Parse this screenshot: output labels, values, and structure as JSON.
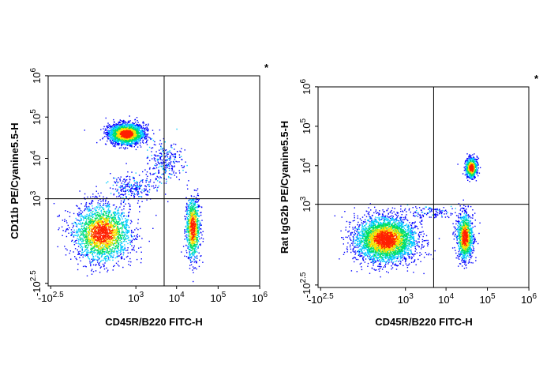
{
  "chart_data": [
    {
      "type": "scatter",
      "subtype": "flow-cytometry-density-plot",
      "title": "",
      "xlabel": "CD45R/B220 FITC-H",
      "ylabel": "CD11b PE/Cyanine5.5-H",
      "x_scale": "logicle",
      "y_scale": "logicle",
      "xlim": [
        -316,
        1000000
      ],
      "ylim": [
        -316,
        1000000
      ],
      "x_ticks": [
        "-10^2.5",
        "10^3",
        "10^4",
        "10^5",
        "10^6"
      ],
      "y_ticks": [
        "-10^2.5",
        "10^3",
        "10^4",
        "10^5",
        "10^6"
      ],
      "gates": {
        "x": 5000,
        "y": 1000
      },
      "corner_mark": "*",
      "grid": false,
      "legend": "none",
      "populations": [
        {
          "x": 100,
          "y": 100,
          "sx": 0.9,
          "sy": 0.9,
          "count": 2200
        },
        {
          "x": 550,
          "y": 40000,
          "sx": 0.55,
          "sy": 0.32,
          "count": 2300
        },
        {
          "x": 24000,
          "y": 150,
          "sx": 0.22,
          "sy": 1.0,
          "count": 900
        },
        {
          "x": 5000,
          "y": 8000,
          "sx": 0.55,
          "sy": 0.65,
          "count": 260,
          "sparse": true
        },
        {
          "x": 800,
          "y": 2000,
          "sx": 0.7,
          "sy": 0.4,
          "count": 250,
          "sparse": true
        }
      ]
    },
    {
      "type": "scatter",
      "subtype": "flow-cytometry-density-plot",
      "title": "",
      "xlabel": "CD45R/B220 FITC-H",
      "ylabel": "Rat IgG2b PE/Cyanine5.5-H",
      "x_scale": "logicle",
      "y_scale": "logicle",
      "xlim": [
        -316,
        1000000
      ],
      "ylim": [
        -316,
        1000000
      ],
      "x_ticks": [
        "-10^2.5",
        "10^3",
        "10^4",
        "10^5",
        "10^6"
      ],
      "y_ticks": [
        "-10^2.5",
        "10^3",
        "10^4",
        "10^5",
        "10^6"
      ],
      "gates": {
        "x": 5000,
        "y": 1000
      },
      "corner_mark": "*",
      "grid": false,
      "legend": "none",
      "populations": [
        {
          "x": 280,
          "y": 80,
          "sx": 0.95,
          "sy": 0.75,
          "count": 3600
        },
        {
          "x": 28000,
          "y": 100,
          "sx": 0.25,
          "sy": 0.75,
          "count": 1100
        },
        {
          "x": 40000,
          "y": 9000,
          "sx": 0.18,
          "sy": 0.33,
          "count": 700
        },
        {
          "x": 5000,
          "y": 600,
          "sx": 0.8,
          "sy": 0.25,
          "count": 120,
          "sparse": true
        }
      ]
    }
  ],
  "colors": {
    "low": "#0000ff",
    "mid_low": "#00ccff",
    "mid": "#00e060",
    "mid_high": "#ffe000",
    "high": "#ff2000"
  }
}
